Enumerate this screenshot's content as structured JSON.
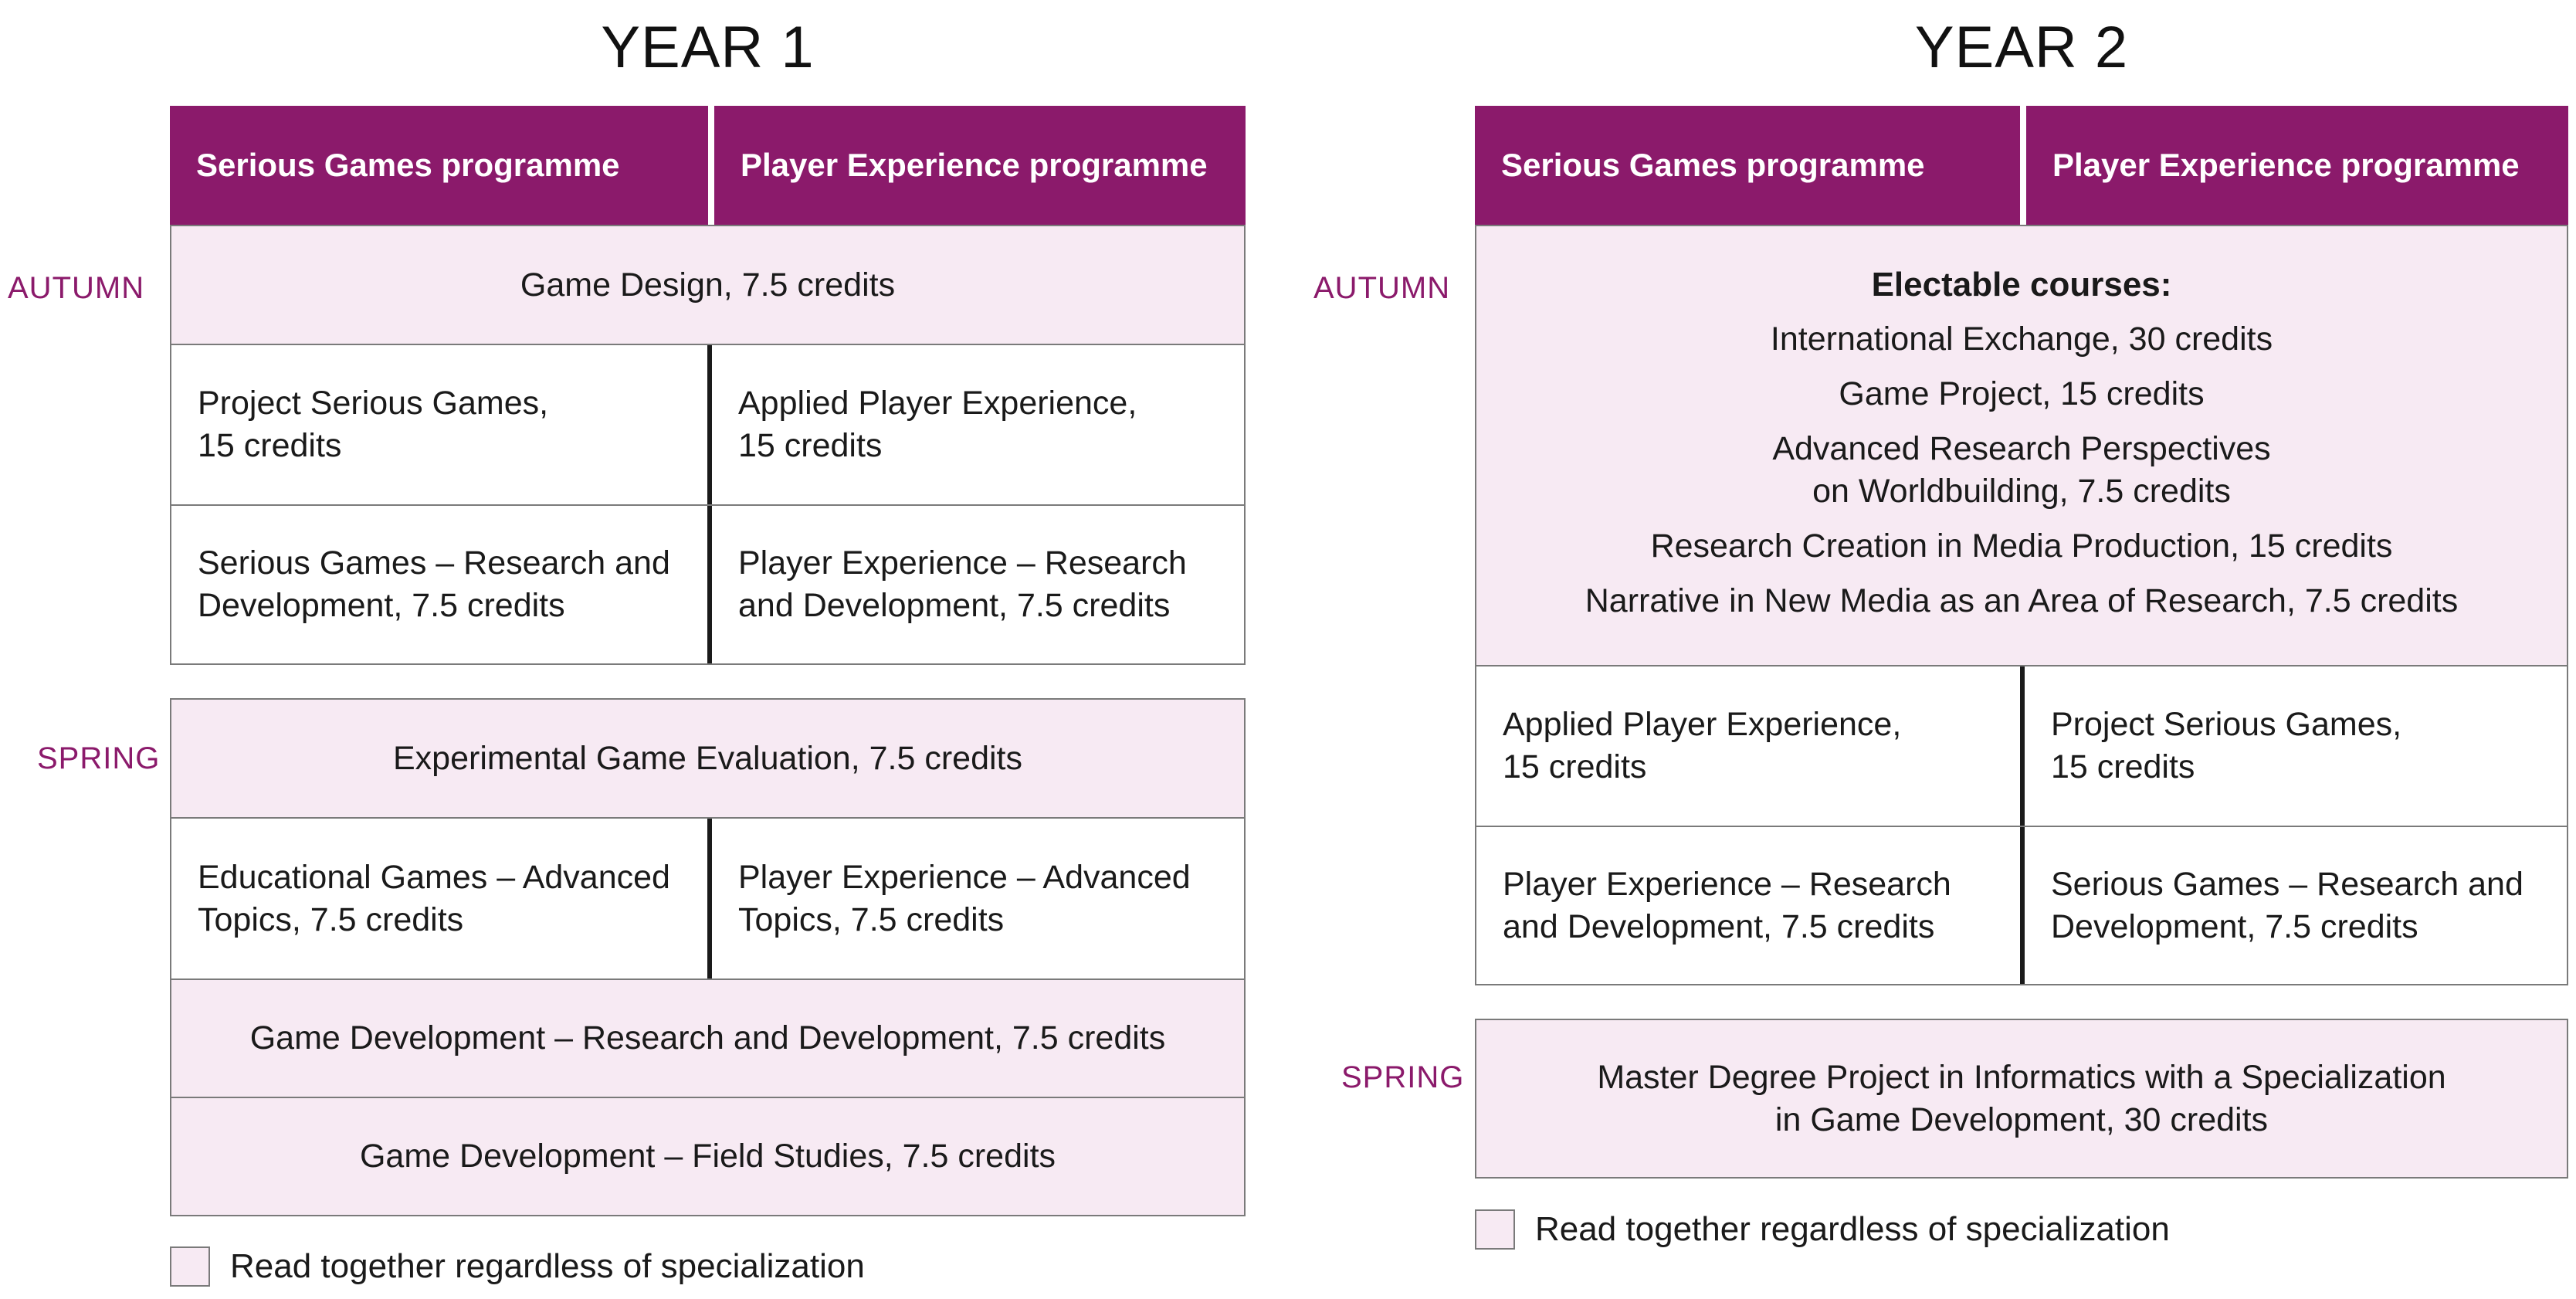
{
  "colors": {
    "accent": "#8b1a6b",
    "shared_fill": "#f7eaf3",
    "header_text": "#ffffff"
  },
  "year1": {
    "title": "YEAR 1",
    "header": {
      "left": "Serious Games programme",
      "right": "Player Experience programme"
    },
    "autumn": {
      "label": "AUTUMN",
      "shared_top": "Game Design, 7.5 credits",
      "rows": [
        {
          "left": "Project Serious Games,\n15 credits",
          "right": "Applied Player Experience,\n15 credits"
        },
        {
          "left": "Serious Games – Research and\nDevelopment, 7.5 credits",
          "right": "Player Experience – Research\nand Development, 7.5 credits"
        }
      ]
    },
    "spring": {
      "label": "SPRING",
      "shared_top": "Experimental Game Evaluation, 7.5 credits",
      "row": {
        "left": "Educational Games – Advanced\nTopics, 7.5 credits",
        "right": "Player Experience – Advanced\nTopics, 7.5 credits"
      },
      "shared_bottom": [
        "Game Development – Research and Development, 7.5 credits",
        "Game Development – Field Studies, 7.5 credits"
      ]
    },
    "legend": "Read together regardless of specialization"
  },
  "year2": {
    "title": "YEAR 2",
    "header": {
      "left": "Serious Games programme",
      "right": "Player Experience programme"
    },
    "autumn": {
      "label": "AUTUMN",
      "electable_heading": "Electable courses:",
      "electable": [
        "International Exchange, 30 credits",
        "Game Project, 15 credits",
        "Advanced Research Perspectives\non Worldbuilding, 7.5 credits",
        "Research Creation in Media Production, 15 credits",
        "Narrative in New Media as an Area of Research, 7.5 credits"
      ],
      "rows": [
        {
          "left": "Applied Player Experience,\n15 credits",
          "right": "Project Serious Games,\n15 credits"
        },
        {
          "left": "Player Experience – Research\nand Development, 7.5 credits",
          "right": "Serious Games – Research and\nDevelopment, 7.5 credits"
        }
      ]
    },
    "spring": {
      "label": "SPRING",
      "shared": "Master Degree Project in Informatics with a Specialization\nin Game Development, 30 credits"
    },
    "legend": "Read together regardless of specialization"
  }
}
